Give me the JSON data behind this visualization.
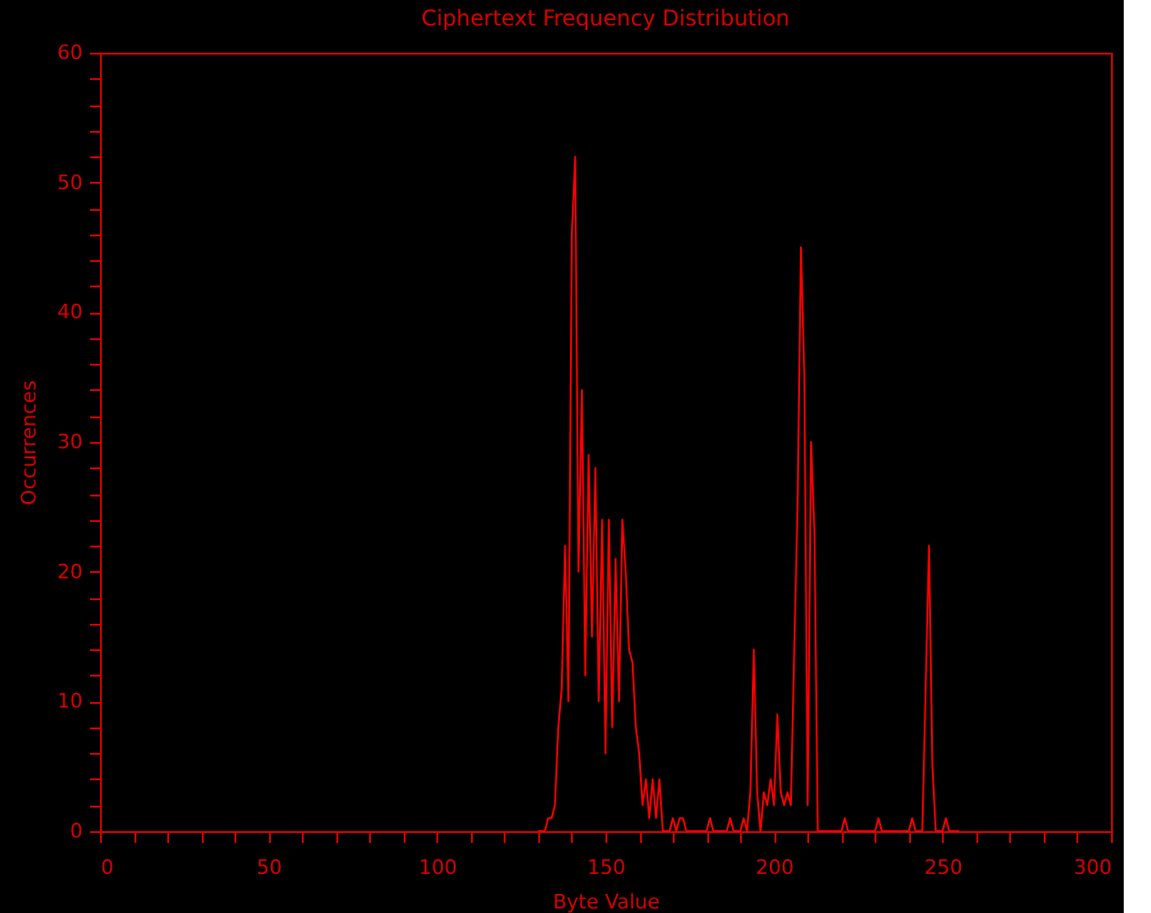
{
  "chart_data": {
    "type": "line",
    "title": "Ciphertext Frequency Distribution",
    "xlabel": "Byte Value",
    "ylabel": "Occurrences",
    "xlim": [
      0,
      300
    ],
    "ylim": [
      0,
      60
    ],
    "xticks": [
      0,
      {
        "value": 10,
        "label": null
      },
      {
        "value": 20,
        "label": null
      },
      {
        "value": 30,
        "label": null
      },
      {
        "value": 40,
        "label": null
      },
      50,
      {
        "value": 60,
        "label": null
      },
      {
        "value": 70,
        "label": null
      },
      {
        "value": 80,
        "label": null
      },
      {
        "value": 90,
        "label": null
      },
      100,
      {
        "value": 110,
        "label": null
      },
      {
        "value": 120,
        "label": null
      },
      {
        "value": 130,
        "label": null
      },
      {
        "value": 140,
        "label": null
      },
      150,
      {
        "value": 160,
        "label": null
      },
      {
        "value": 170,
        "label": null
      },
      {
        "value": 180,
        "label": null
      },
      {
        "value": 190,
        "label": null
      },
      200,
      {
        "value": 210,
        "label": null
      },
      {
        "value": 220,
        "label": null
      },
      {
        "value": 230,
        "label": null
      },
      {
        "value": 240,
        "label": null
      },
      250,
      {
        "value": 260,
        "label": null
      },
      {
        "value": 270,
        "label": null
      },
      {
        "value": 280,
        "label": null
      },
      {
        "value": 290,
        "label": null
      },
      300
    ],
    "yticks": [
      0,
      {
        "value": 2,
        "label": null
      },
      {
        "value": 4,
        "label": null
      },
      {
        "value": 6,
        "label": null
      },
      {
        "value": 8,
        "label": null
      },
      10,
      {
        "value": 12,
        "label": null
      },
      {
        "value": 14,
        "label": null
      },
      {
        "value": 16,
        "label": null
      },
      {
        "value": 18,
        "label": null
      },
      20,
      {
        "value": 22,
        "label": null
      },
      {
        "value": 24,
        "label": null
      },
      {
        "value": 26,
        "label": null
      },
      {
        "value": 28,
        "label": null
      },
      30,
      {
        "value": 32,
        "label": null
      },
      {
        "value": 34,
        "label": null
      },
      {
        "value": 36,
        "label": null
      },
      {
        "value": 38,
        "label": null
      },
      40,
      {
        "value": 42,
        "label": null
      },
      {
        "value": 44,
        "label": null
      },
      {
        "value": 46,
        "label": null
      },
      {
        "value": 48,
        "label": null
      },
      50,
      {
        "value": 52,
        "label": null
      },
      {
        "value": 54,
        "label": null
      },
      {
        "value": 56,
        "label": null
      },
      {
        "value": 58,
        "label": null
      },
      60
    ],
    "grid": false,
    "marker": "none",
    "line_style": "solid",
    "x": [
      130,
      131,
      132,
      133,
      134,
      135,
      136,
      137,
      138,
      139,
      140,
      141,
      142,
      143,
      144,
      145,
      146,
      147,
      148,
      149,
      150,
      151,
      152,
      153,
      154,
      155,
      156,
      157,
      158,
      159,
      160,
      161,
      162,
      163,
      164,
      165,
      166,
      167,
      168,
      169,
      170,
      171,
      172,
      173,
      174,
      175,
      180,
      181,
      182,
      186,
      187,
      188,
      190,
      191,
      192,
      193,
      194,
      195,
      196,
      197,
      198,
      199,
      200,
      201,
      202,
      203,
      204,
      205,
      206,
      207,
      208,
      209,
      210,
      211,
      212,
      213,
      214,
      220,
      221,
      222,
      230,
      231,
      232,
      240,
      241,
      242,
      244,
      245,
      246,
      247,
      248,
      250,
      251,
      252,
      255
    ],
    "series": [
      {
        "color": "#ff0000",
        "values": [
          0,
          0,
          0,
          1,
          1,
          2,
          8,
          11,
          22,
          10,
          46,
          52,
          20,
          34,
          12,
          29,
          15,
          28,
          10,
          24,
          6,
          24,
          8,
          21,
          10,
          24,
          20,
          14,
          13,
          8,
          6,
          2,
          4,
          1,
          4,
          1,
          4,
          0,
          0,
          0,
          1,
          0,
          1,
          1,
          0,
          0,
          0,
          1,
          0,
          0,
          1,
          0,
          0,
          1,
          0,
          3,
          14,
          3,
          0,
          3,
          2,
          4,
          2,
          9,
          3,
          2,
          3,
          2,
          14,
          25,
          45,
          35,
          2,
          30,
          23,
          0,
          0,
          0,
          1,
          0,
          0,
          1,
          0,
          0,
          1,
          0,
          0,
          11,
          22,
          5,
          0,
          0,
          1,
          0,
          0
        ]
      }
    ]
  }
}
